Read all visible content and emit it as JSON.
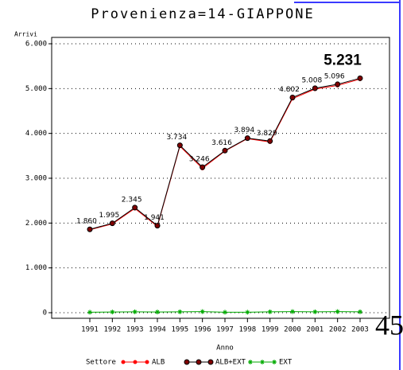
{
  "chart_data": {
    "type": "line",
    "title": "Provenienza=14-GIAPPONE",
    "y_label": "Arrivi",
    "x_label": "Anno",
    "legend_title": "Settore",
    "page_number": "45",
    "categories": [
      "1991",
      "1992",
      "1993",
      "1994",
      "1995",
      "1996",
      "1997",
      "1998",
      "1999",
      "2000",
      "2001",
      "2002",
      "2003"
    ],
    "series": [
      {
        "name": "ALB",
        "color": "#ff0000",
        "marker": "dot",
        "values": [
          1850,
          1980,
          2325,
          1926,
          3714,
          3221,
          3606,
          3884,
          3809,
          4777,
          4988,
          5071,
          5211
        ]
      },
      {
        "name": "ALB+EXT",
        "color": "#000000",
        "marker": "circle",
        "fill": "#800000",
        "values": [
          1860,
          1995,
          2345,
          1941,
          3734,
          3246,
          3616,
          3894,
          3829,
          4802,
          5008,
          5096,
          5231
        ],
        "value_labels": [
          "1.860",
          "1.995",
          "2.345",
          "1.941",
          "3.734",
          "3.246",
          "3.616",
          "3.894",
          "3.829",
          "4.802",
          "5.008",
          "5.096",
          "5.231"
        ]
      },
      {
        "name": "EXT",
        "color": "#00aa00",
        "marker": "star",
        "values": [
          10,
          15,
          20,
          15,
          20,
          25,
          10,
          10,
          20,
          25,
          20,
          25,
          20
        ]
      }
    ],
    "ylim": [
      0,
      6000
    ],
    "yticks": [
      {
        "value": 0,
        "label": "0"
      },
      {
        "value": 1000,
        "label": "1.000"
      },
      {
        "value": 2000,
        "label": "2.000"
      },
      {
        "value": 3000,
        "label": "3.000"
      },
      {
        "value": 4000,
        "label": "4.000"
      },
      {
        "value": 5000,
        "label": "5.000"
      },
      {
        "value": 6000,
        "label": "6.000"
      }
    ],
    "grid": true
  }
}
